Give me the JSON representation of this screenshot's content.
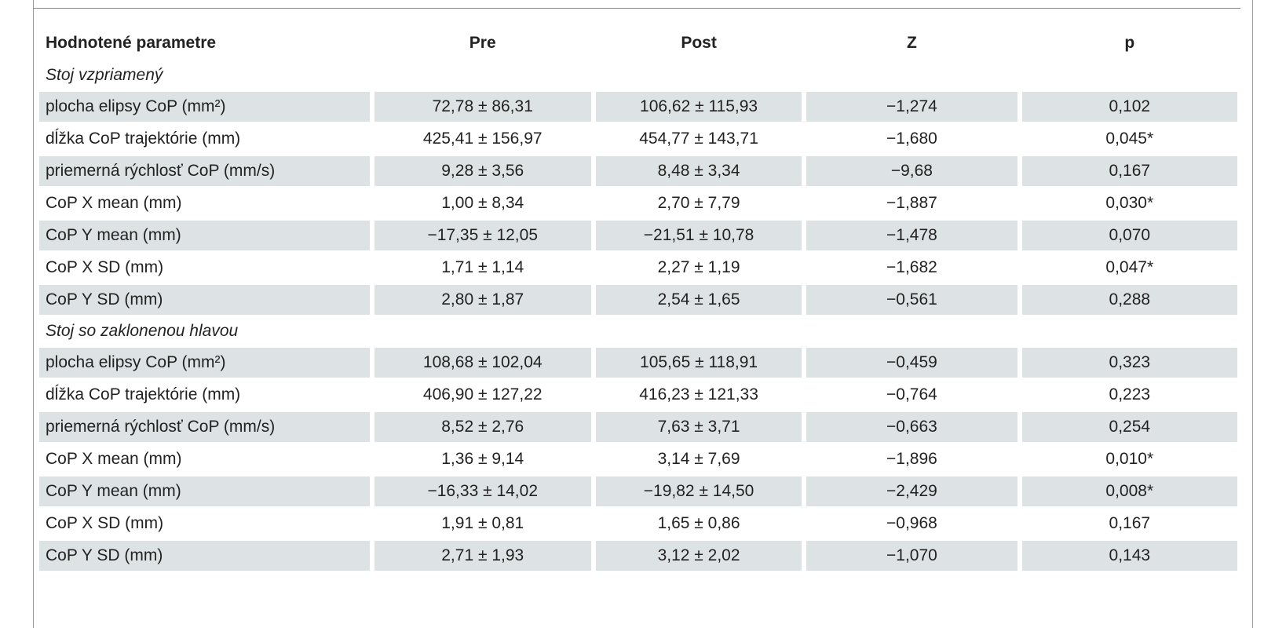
{
  "table": {
    "header": [
      "Hodnotené parametre",
      "Pre",
      "Post",
      "Z",
      "p"
    ],
    "sections": [
      {
        "title": "Stoj vzpriamený",
        "rows": [
          [
            "plocha elipsy CoP (mm²)",
            "72,78 ± 86,31",
            "106,62 ± 115,93",
            "−1,274",
            "0,102"
          ],
          [
            "dĺžka CoP trajektórie (mm)",
            "425,41 ± 156,97",
            "454,77 ± 143,71",
            "−1,680",
            "0,045*"
          ],
          [
            "priemerná rýchlosť CoP (mm/s)",
            "9,28 ± 3,56",
            "8,48 ± 3,34",
            "−9,68",
            "0,167"
          ],
          [
            "CoP X mean (mm)",
            "1,00 ± 8,34",
            "2,70 ± 7,79",
            "−1,887",
            "0,030*"
          ],
          [
            "CoP Y mean (mm)",
            "−17,35 ± 12,05",
            "−21,51 ± 10,78",
            "−1,478",
            "0,070"
          ],
          [
            "CoP X SD (mm)",
            "1,71 ± 1,14",
            "2,27 ± 1,19",
            "−1,682",
            "0,047*"
          ],
          [
            "CoP Y SD (mm)",
            "2,80 ± 1,87",
            "2,54 ± 1,65",
            "−0,561",
            "0,288"
          ]
        ]
      },
      {
        "title": "Stoj so zaklonenou hlavou",
        "rows": [
          [
            "plocha elipsy CoP (mm²)",
            "108,68 ± 102,04",
            "105,65 ± 118,91",
            "−0,459",
            "0,323"
          ],
          [
            "dĺžka CoP trajektórie (mm)",
            "406,90 ± 127,22",
            "416,23 ± 121,33",
            "−0,764",
            "0,223"
          ],
          [
            "priemerná rýchlosť CoP (mm/s)",
            "8,52 ± 2,76",
            "7,63 ± 3,71",
            "−0,663",
            "0,254"
          ],
          [
            "CoP X mean (mm)",
            "1,36 ± 9,14",
            "3,14 ± 7,69",
            "−1,896",
            "0,010*"
          ],
          [
            "CoP Y mean (mm)",
            "−16,33 ± 14,02",
            "−19,82 ± 14,50",
            "−2,429",
            "0,008*"
          ],
          [
            "CoP X SD (mm)",
            "1,91 ± 0,81",
            "1,65 ± 0,86",
            "−0,968",
            "0,167"
          ],
          [
            "CoP Y SD (mm)",
            "2,71 ± 1,93",
            "3,12 ± 2,02",
            "−1,070",
            "0,143"
          ]
        ]
      }
    ]
  }
}
